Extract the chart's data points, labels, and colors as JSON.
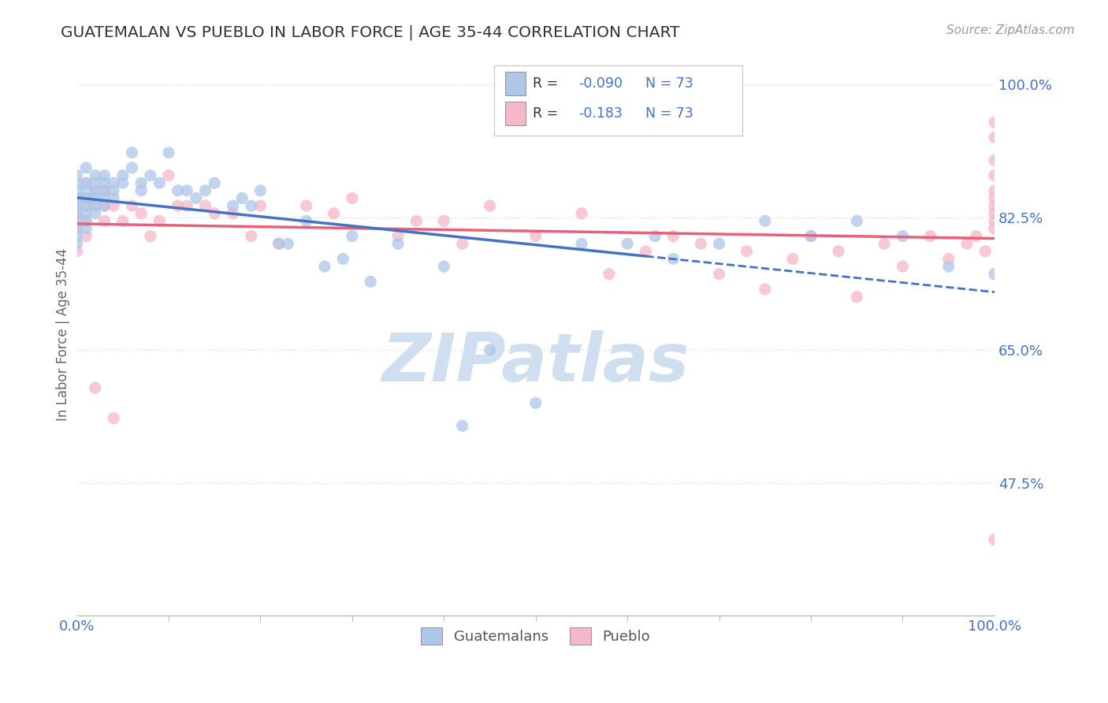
{
  "title": "GUATEMALAN VS PUEBLO IN LABOR FORCE | AGE 35-44 CORRELATION CHART",
  "source_text": "Source: ZipAtlas.com",
  "ylabel": "In Labor Force | Age 35-44",
  "xlim": [
    0.0,
    1.0
  ],
  "ylim": [
    0.3,
    1.04
  ],
  "ytick_values": [
    0.475,
    0.65,
    0.825,
    1.0
  ],
  "blue_color": "#aec6e8",
  "pink_color": "#f5b8c8",
  "trend_blue_solid": "#4472c4",
  "trend_pink": "#e8607a",
  "watermark_color": "#d0dff0",
  "background_color": "#ffffff",
  "grid_color": "#dddddd",
  "blue_scatter_x": [
    0.0,
    0.0,
    0.0,
    0.0,
    0.0,
    0.0,
    0.0,
    0.0,
    0.0,
    0.0,
    0.01,
    0.01,
    0.01,
    0.01,
    0.01,
    0.01,
    0.01,
    0.01,
    0.02,
    0.02,
    0.02,
    0.02,
    0.02,
    0.02,
    0.03,
    0.03,
    0.03,
    0.03,
    0.03,
    0.04,
    0.04,
    0.04,
    0.05,
    0.05,
    0.06,
    0.06,
    0.07,
    0.07,
    0.08,
    0.09,
    0.1,
    0.11,
    0.12,
    0.13,
    0.14,
    0.15,
    0.17,
    0.18,
    0.19,
    0.2,
    0.22,
    0.23,
    0.25,
    0.27,
    0.29,
    0.3,
    0.32,
    0.35,
    0.4,
    0.42,
    0.45,
    0.5,
    0.55,
    0.6,
    0.63,
    0.65,
    0.7,
    0.75,
    0.8,
    0.85,
    0.9,
    0.95,
    1.0
  ],
  "blue_scatter_y": [
    0.88,
    0.87,
    0.86,
    0.85,
    0.84,
    0.83,
    0.82,
    0.81,
    0.8,
    0.79,
    0.89,
    0.87,
    0.86,
    0.85,
    0.84,
    0.83,
    0.82,
    0.81,
    0.88,
    0.87,
    0.86,
    0.85,
    0.84,
    0.83,
    0.88,
    0.87,
    0.86,
    0.85,
    0.84,
    0.87,
    0.86,
    0.85,
    0.88,
    0.87,
    0.91,
    0.89,
    0.87,
    0.86,
    0.88,
    0.87,
    0.91,
    0.86,
    0.86,
    0.85,
    0.86,
    0.87,
    0.84,
    0.85,
    0.84,
    0.86,
    0.79,
    0.79,
    0.82,
    0.76,
    0.77,
    0.8,
    0.74,
    0.79,
    0.76,
    0.55,
    0.65,
    0.58,
    0.79,
    0.79,
    0.8,
    0.77,
    0.79,
    0.82,
    0.8,
    0.82,
    0.8,
    0.76,
    0.75
  ],
  "pink_scatter_x": [
    0.0,
    0.0,
    0.0,
    0.0,
    0.0,
    0.0,
    0.01,
    0.01,
    0.01,
    0.01,
    0.01,
    0.02,
    0.02,
    0.02,
    0.03,
    0.03,
    0.03,
    0.04,
    0.04,
    0.05,
    0.06,
    0.07,
    0.08,
    0.09,
    0.1,
    0.11,
    0.12,
    0.14,
    0.15,
    0.17,
    0.19,
    0.2,
    0.22,
    0.25,
    0.28,
    0.3,
    0.35,
    0.37,
    0.4,
    0.42,
    0.45,
    0.5,
    0.55,
    0.58,
    0.62,
    0.65,
    0.68,
    0.7,
    0.73,
    0.75,
    0.78,
    0.8,
    0.83,
    0.85,
    0.88,
    0.9,
    0.93,
    0.95,
    0.97,
    0.98,
    0.99,
    1.0,
    1.0,
    1.0,
    1.0,
    1.0,
    1.0,
    1.0,
    1.0,
    1.0,
    1.0,
    1.0
  ],
  "pink_scatter_y": [
    0.85,
    0.84,
    0.83,
    0.82,
    0.81,
    0.78,
    0.87,
    0.85,
    0.84,
    0.82,
    0.8,
    0.86,
    0.84,
    0.6,
    0.86,
    0.84,
    0.82,
    0.84,
    0.56,
    0.82,
    0.84,
    0.83,
    0.8,
    0.82,
    0.88,
    0.84,
    0.84,
    0.84,
    0.83,
    0.83,
    0.8,
    0.84,
    0.79,
    0.84,
    0.83,
    0.85,
    0.8,
    0.82,
    0.82,
    0.79,
    0.84,
    0.8,
    0.83,
    0.75,
    0.78,
    0.8,
    0.79,
    0.75,
    0.78,
    0.73,
    0.77,
    0.8,
    0.78,
    0.72,
    0.79,
    0.76,
    0.8,
    0.77,
    0.79,
    0.8,
    0.78,
    0.95,
    0.93,
    0.9,
    0.88,
    0.86,
    0.85,
    0.84,
    0.83,
    0.82,
    0.81,
    0.4
  ]
}
